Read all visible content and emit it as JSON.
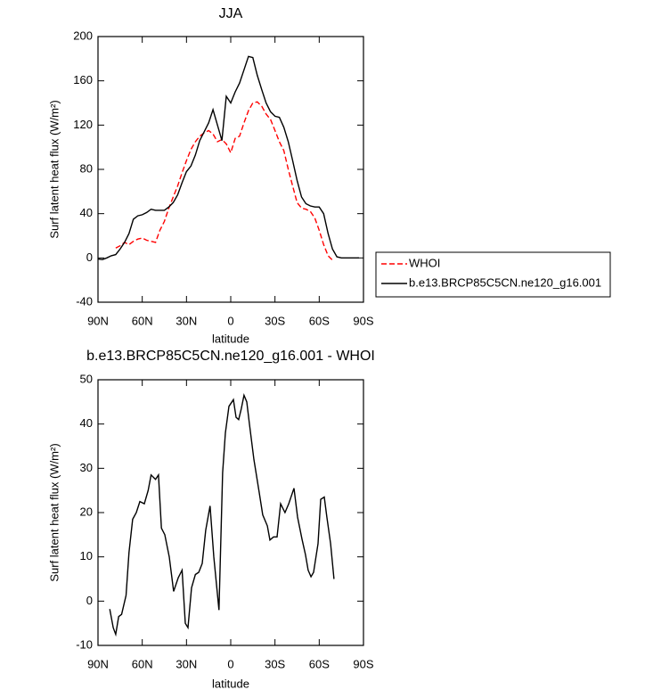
{
  "chart_data": [
    {
      "type": "line",
      "title": "JJA",
      "x_label": "latitude",
      "y_label": "Surf latent heat flux (W/m²)",
      "x": [
        90,
        87,
        84,
        81,
        78,
        75,
        72,
        69,
        66,
        63,
        60,
        57,
        54,
        51,
        48,
        45,
        42,
        39,
        36,
        33,
        30,
        27,
        24,
        21,
        18,
        15,
        12,
        9,
        6,
        3,
        0,
        -3,
        -6,
        -9,
        -12,
        -15,
        -18,
        -21,
        -24,
        -27,
        -30,
        -33,
        -36,
        -39,
        -42,
        -45,
        -48,
        -51,
        -54,
        -57,
        -60,
        -63,
        -66,
        -69,
        -72,
        -75,
        -78,
        -81,
        -84,
        -87
      ],
      "series": [
        {
          "name": "WHOI",
          "color": "#ff0000",
          "dashed": true,
          "values": [
            null,
            null,
            null,
            null,
            9,
            11,
            14,
            12,
            15,
            17,
            18,
            16,
            15,
            14,
            25,
            33,
            45,
            55,
            65,
            77,
            88,
            98,
            105,
            110,
            113,
            115,
            112,
            105,
            107,
            103,
            95,
            108,
            110,
            122,
            133,
            140,
            141,
            137,
            130,
            125,
            115,
            105,
            97,
            80,
            65,
            50,
            45,
            44,
            42,
            36,
            25,
            12,
            2,
            -2,
            null,
            null,
            null,
            null,
            null,
            null
          ]
        },
        {
          "name": "b.e13.BRCP85C5CN.ne120_g16.001",
          "color": "#000000",
          "dashed": false,
          "values": [
            -1,
            -1.5,
            0,
            2,
            3,
            8,
            14,
            22,
            35,
            38,
            39,
            41,
            44,
            43,
            43,
            43,
            46,
            50,
            57,
            68,
            78,
            83,
            93,
            106,
            114,
            122,
            134,
            120,
            106,
            146,
            140,
            150,
            158,
            170,
            182,
            181,
            165,
            152,
            140,
            132,
            128,
            127,
            118,
            105,
            88,
            70,
            55,
            49,
            47,
            46,
            46,
            40,
            22,
            8,
            1,
            0,
            0,
            0,
            0,
            0
          ]
        }
      ],
      "xlim": [
        90,
        -90
      ],
      "xticks": [
        {
          "value": 90,
          "label": "90N"
        },
        {
          "value": 60,
          "label": "60N"
        },
        {
          "value": 30,
          "label": "30N"
        },
        0,
        {
          "value": -30,
          "label": "30S"
        },
        {
          "value": -60,
          "label": "60S"
        },
        {
          "value": -90,
          "label": "90S"
        }
      ],
      "ylim": [
        -40,
        200
      ],
      "yticks": [
        -40,
        0,
        40,
        80,
        120,
        160,
        200
      ],
      "legend": "right"
    },
    {
      "type": "line",
      "title": "b.e13.BRCP85C5CN.ne120_g16.001 - WHOI",
      "x_label": "latitude",
      "y_label": "Surf latent heat flux (W/m²)",
      "x": [
        82,
        79.7,
        78,
        76,
        74,
        71,
        69,
        66.5,
        64,
        61.6,
        58.6,
        56,
        54,
        51,
        49,
        47,
        44.7,
        41.7,
        38.7,
        35.6,
        33,
        30.8,
        29,
        26.6,
        24,
        21.7,
        19.3,
        17,
        14,
        11.5,
        8,
        5.5,
        3.6,
        1.2,
        -1.8,
        -3.6,
        -5.4,
        -7.2,
        -9,
        -10.9,
        -12.7,
        -15.7,
        -19.3,
        -21.7,
        -24.8,
        -26.6,
        -29,
        -31.4,
        -33.8,
        -36.8,
        -39.3,
        -42.9,
        -45.3,
        -48.3,
        -50.7,
        -52.5,
        -54.4,
        -56.2,
        -59.2,
        -61,
        -63.4,
        -65.2,
        -67.7,
        -70
      ],
      "series": [
        {
          "color": "#000000",
          "values": [
            -1.8,
            -6,
            -7.5,
            -3.5,
            -3,
            1.3,
            11,
            18.5,
            20,
            22.5,
            22,
            25,
            28.5,
            27.5,
            28.5,
            16.5,
            15,
            10,
            2.2,
            5.3,
            7,
            -5,
            -6,
            3,
            6,
            6.5,
            8.5,
            16,
            21.5,
            10,
            -2,
            29,
            38,
            44,
            45.5,
            41.5,
            41,
            43.5,
            46.5,
            45,
            40,
            32,
            24.5,
            19.5,
            17,
            13.8,
            14.5,
            14.5,
            22,
            20,
            22,
            25.5,
            19,
            14,
            10.5,
            7,
            5.5,
            6.5,
            13,
            23,
            23.5,
            19,
            13,
            5
          ]
        }
      ],
      "xlim": [
        90,
        -90
      ],
      "xticks": [
        {
          "value": 90,
          "label": "90N"
        },
        {
          "value": 60,
          "label": "60N"
        },
        {
          "value": 30,
          "label": "30N"
        },
        0,
        {
          "value": -30,
          "label": "30S"
        },
        {
          "value": -60,
          "label": "60S"
        },
        {
          "value": -90,
          "label": "90S"
        }
      ],
      "ylim": [
        -10,
        50
      ],
      "yticks": [
        -10,
        0,
        10,
        20,
        30,
        40,
        50
      ]
    }
  ]
}
